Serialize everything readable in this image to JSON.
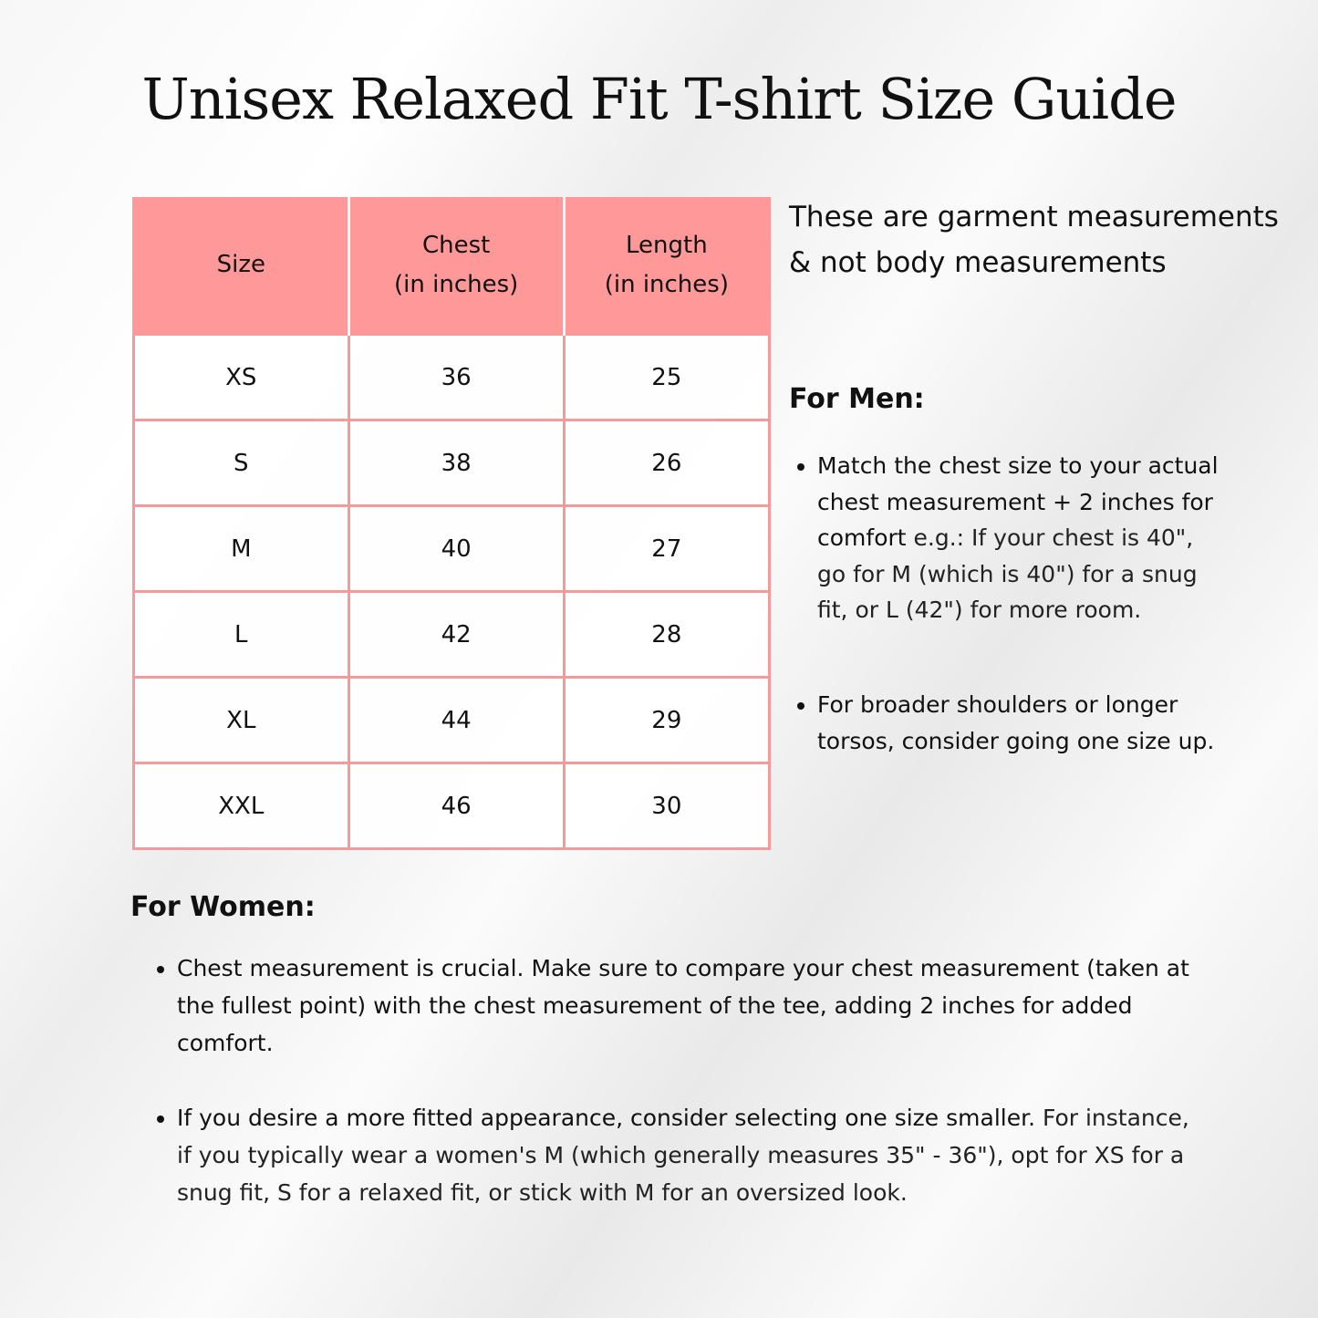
{
  "title": "Unisex Relaxed Fit T-shirt Size Guide",
  "table": {
    "headers": [
      {
        "line1": "Size",
        "line2": ""
      },
      {
        "line1": "Chest",
        "line2": "(in inches)"
      },
      {
        "line1": "Length",
        "line2": "(in inches)"
      }
    ],
    "rows": [
      [
        "XS",
        "36",
        "25"
      ],
      [
        "S",
        "38",
        "26"
      ],
      [
        "M",
        "40",
        "27"
      ],
      [
        "L",
        "42",
        "28"
      ],
      [
        "XL",
        "44",
        "29"
      ],
      [
        "XXL",
        "46",
        "30"
      ]
    ]
  },
  "note": "These are garment measurements & not body measurements",
  "men": {
    "heading": "For Men:",
    "bullets": [
      {
        "strong": "Match the chest size to your actual chest measurement + 2 inches for comfort",
        "rest": " e.g.: If your chest is 40\", go for M (which is 40\") for a snug fit, or L (42\") for more room."
      },
      {
        "strong": "For broader shoulders or longer torsos, consider going one size up.",
        "rest": ""
      }
    ]
  },
  "women": {
    "heading": "For Women:",
    "bullets": [
      {
        "strong": "Chest measurement is crucial. Make sure to compare your chest measurement (taken at the fullest point) with the chest measurement of the tee, adding 2 inches for added comfort.",
        "rest": ""
      },
      {
        "strong": "If you desire a more fitted appearance, consider selecting one size smaller.",
        "rest": " For instance, if you typically wear a women's M (which generally measures 35\" - 36\"), opt for XS for a snug fit, S for a relaxed fit, or stick with M for an oversized look."
      }
    ]
  },
  "colors": {
    "header_bg": "#ff9898",
    "border": "#f59a9a"
  }
}
